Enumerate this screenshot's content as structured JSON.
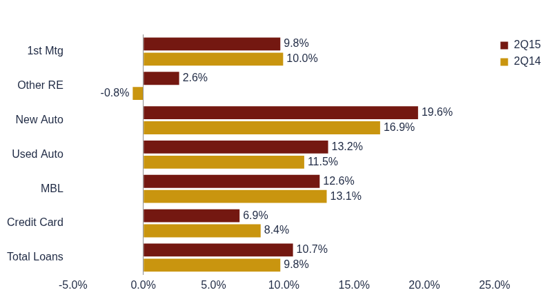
{
  "chart_data": {
    "type": "bar",
    "orientation": "horizontal",
    "categories": [
      "1st Mtg",
      "Other RE",
      "New Auto",
      "Used Auto",
      "MBL",
      "Credit Card",
      "Total Loans"
    ],
    "series": [
      {
        "name": "2Q15",
        "color": "#741811",
        "values": [
          9.8,
          2.6,
          19.6,
          13.2,
          12.6,
          6.9,
          10.7
        ],
        "value_labels": [
          "9.8%",
          "2.6%",
          "19.6%",
          "13.2%",
          "12.6%",
          "6.9%",
          "10.7%"
        ]
      },
      {
        "name": "2Q14",
        "color": "#C9950F",
        "values": [
          10.0,
          -0.8,
          16.9,
          11.5,
          13.1,
          8.4,
          9.8
        ],
        "value_labels": [
          "10.0%",
          "-0.8%",
          "16.9%",
          "11.5%",
          "13.1%",
          "8.4%",
          "9.8%"
        ]
      }
    ],
    "xlim": [
      -5,
      25
    ],
    "xticks": [
      {
        "value": -5,
        "label": "-5.0%"
      },
      {
        "value": 0,
        "label": "0.0%"
      },
      {
        "value": 5,
        "label": "5.0%"
      },
      {
        "value": 10,
        "label": "10.0%"
      },
      {
        "value": 15,
        "label": "15.0%"
      },
      {
        "value": 20,
        "label": "20.0%"
      },
      {
        "value": 25,
        "label": "25.0%"
      }
    ],
    "grid": false,
    "legend": "upper right",
    "data_labels": true
  }
}
